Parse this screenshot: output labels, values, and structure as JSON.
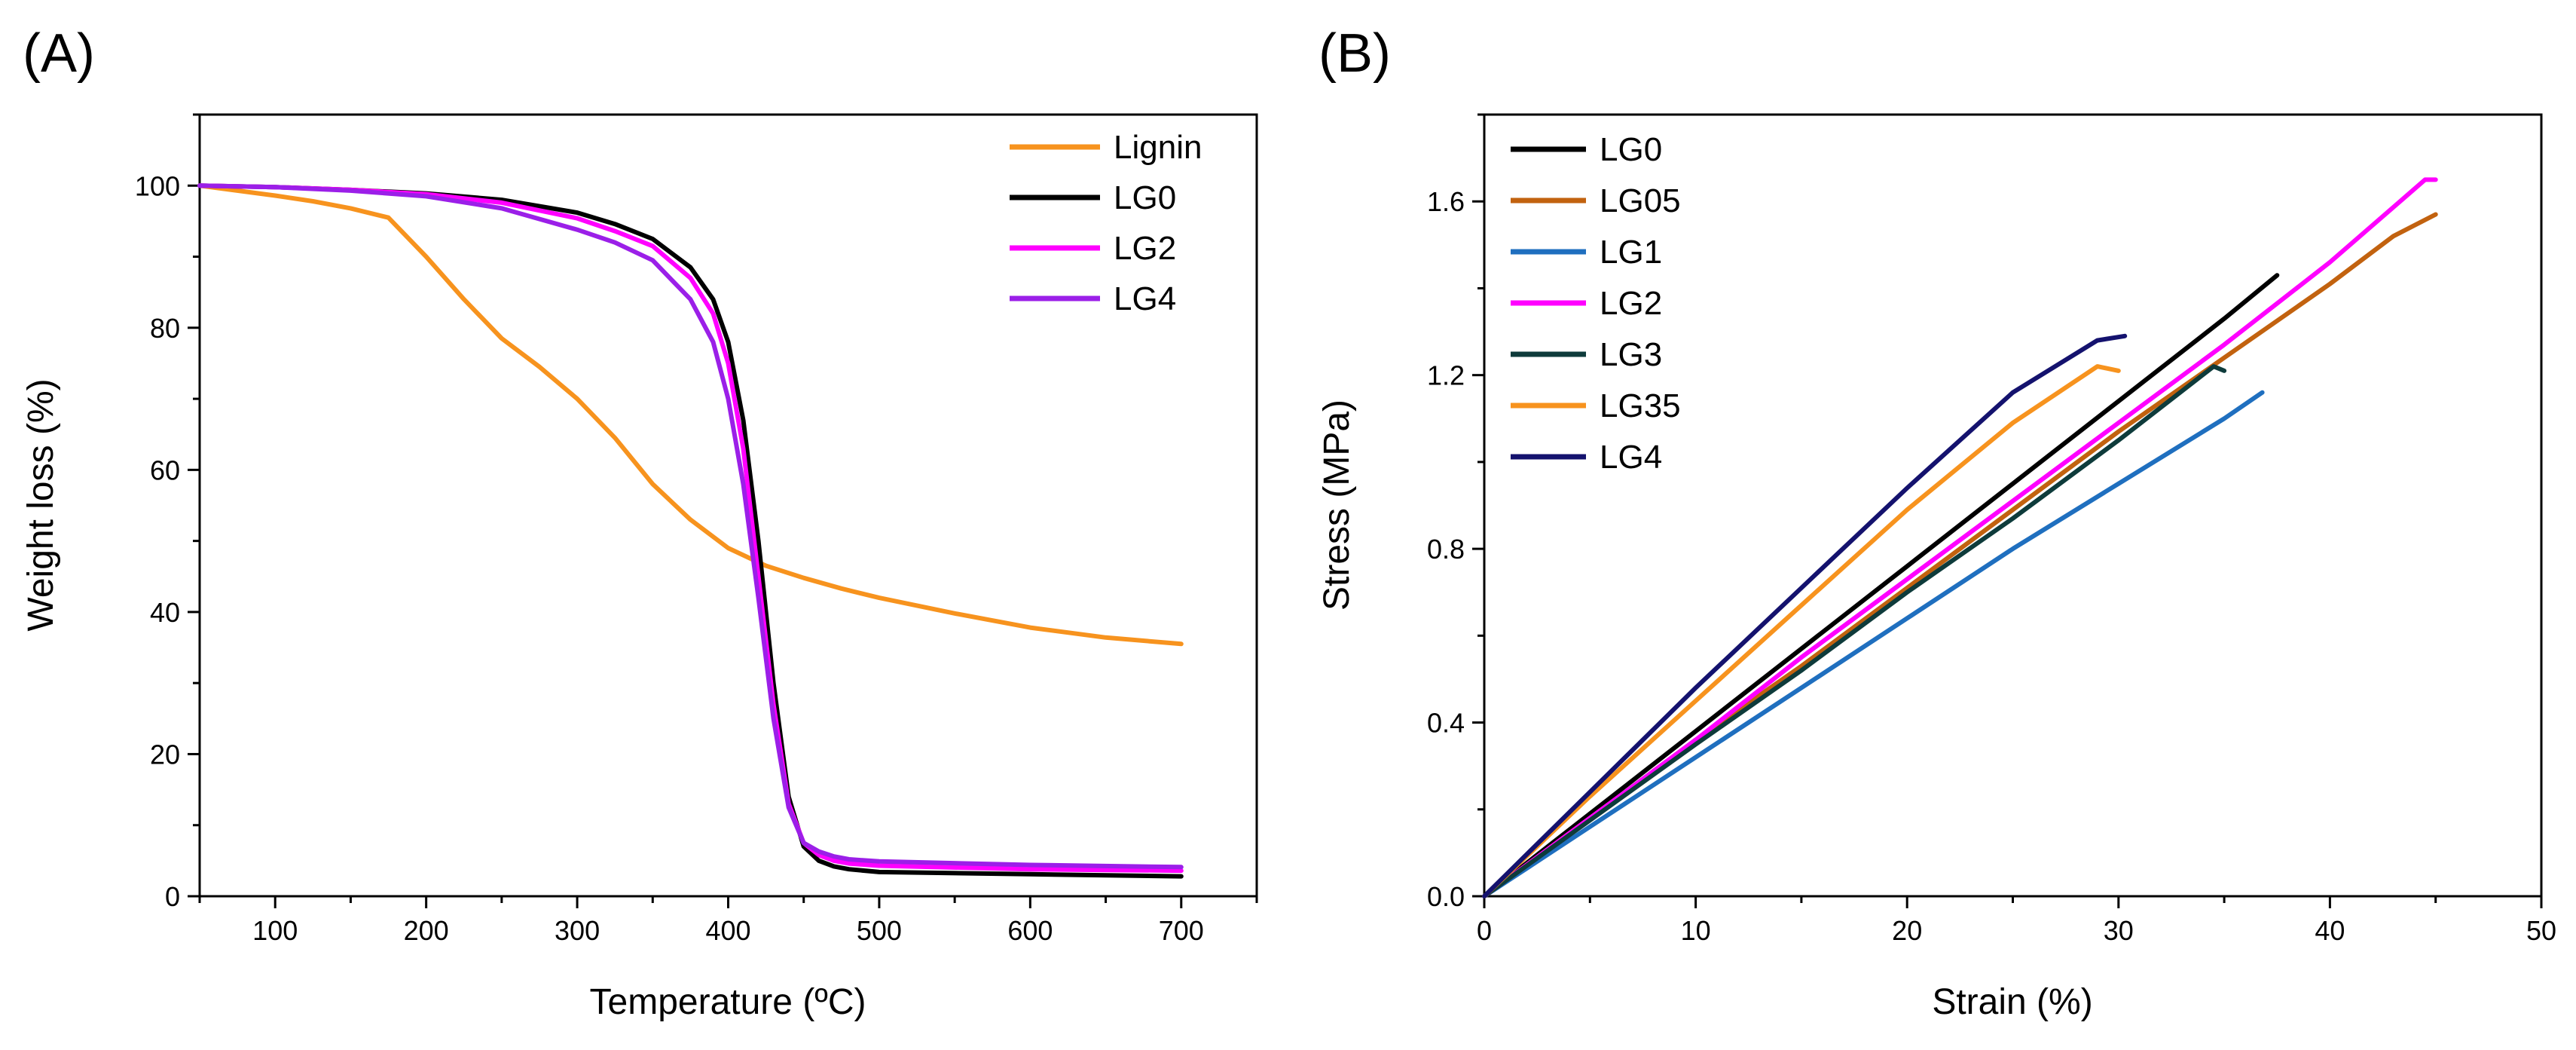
{
  "chart_data": [
    {
      "panel_label": "(A)",
      "type": "line",
      "title": "",
      "xlabel": "Temperature (ºC)",
      "ylabel": "Weight loss (%)",
      "xlim": [
        50,
        750
      ],
      "ylim": [
        0,
        110
      ],
      "xticks": [
        100,
        200,
        300,
        400,
        500,
        600,
        700
      ],
      "yticks": [
        0,
        20,
        40,
        60,
        80,
        100
      ],
      "grid": false,
      "legend_position": "top-right",
      "series": [
        {
          "name": "Lignin",
          "color": "#F7931E",
          "x": [
            50,
            75,
            100,
            125,
            150,
            175,
            200,
            225,
            250,
            275,
            300,
            325,
            350,
            375,
            400,
            425,
            450,
            475,
            500,
            550,
            600,
            650,
            700
          ],
          "y": [
            100,
            99.3,
            98.6,
            97.8,
            96.8,
            95.5,
            90,
            84,
            78.5,
            74.5,
            70,
            64.5,
            58,
            53,
            49,
            46.5,
            44.8,
            43.3,
            42,
            39.8,
            37.8,
            36.4,
            35.5
          ]
        },
        {
          "name": "LG0",
          "color": "#000000",
          "x": [
            50,
            100,
            150,
            200,
            250,
            300,
            325,
            350,
            375,
            390,
            400,
            410,
            420,
            430,
            440,
            450,
            460,
            470,
            480,
            500,
            600,
            700
          ],
          "y": [
            100,
            99.8,
            99.4,
            98.9,
            98,
            96.2,
            94.6,
            92.5,
            88.5,
            84,
            78,
            67,
            50,
            30,
            14,
            7,
            5,
            4.2,
            3.8,
            3.4,
            3.1,
            2.8
          ]
        },
        {
          "name": "LG2",
          "color": "#FF00FF",
          "x": [
            50,
            100,
            150,
            200,
            250,
            300,
            325,
            350,
            375,
            390,
            400,
            410,
            420,
            430,
            440,
            450,
            460,
            470,
            480,
            500,
            600,
            700
          ],
          "y": [
            100,
            99.8,
            99.4,
            98.8,
            97.6,
            95.4,
            93.6,
            91.5,
            87,
            82,
            75,
            63,
            45,
            27,
            13,
            7.5,
            5.8,
            5,
            4.6,
            4.3,
            3.8,
            3.6
          ]
        },
        {
          "name": "LG4",
          "color": "#9B1FE8",
          "x": [
            50,
            100,
            150,
            200,
            250,
            300,
            325,
            350,
            375,
            390,
            400,
            410,
            420,
            430,
            440,
            450,
            460,
            470,
            480,
            500,
            600,
            700
          ],
          "y": [
            100,
            99.8,
            99.3,
            98.5,
            96.8,
            93.8,
            92,
            89.5,
            84,
            78,
            70,
            58,
            42,
            25,
            12.5,
            7.5,
            6.3,
            5.6,
            5.2,
            4.9,
            4.4,
            4.1
          ]
        }
      ]
    },
    {
      "panel_label": "(B)",
      "type": "line",
      "title": "",
      "xlabel": "Strain (%)",
      "ylabel": "Stress (MPa)",
      "xlim": [
        0,
        50
      ],
      "ylim": [
        0,
        1.8
      ],
      "xticks": [
        0,
        10,
        20,
        30,
        40,
        50
      ],
      "yticks": [
        0.0,
        0.4,
        0.8,
        1.2,
        1.6
      ],
      "ytick_labels": [
        "0.0",
        "0.4",
        "0.8",
        "1.2",
        "1.6"
      ],
      "grid": false,
      "legend_position": "top-left",
      "series": [
        {
          "name": "LG0",
          "color": "#000000",
          "x": [
            0,
            5,
            10,
            15,
            20,
            25,
            30,
            35,
            37.5
          ],
          "y": [
            0,
            0.19,
            0.38,
            0.57,
            0.76,
            0.95,
            1.14,
            1.33,
            1.43
          ]
        },
        {
          "name": "LG05",
          "color": "#C2620F",
          "x": [
            0,
            5,
            10,
            15,
            20,
            25,
            30,
            35,
            40,
            43,
            45
          ],
          "y": [
            0,
            0.18,
            0.36,
            0.53,
            0.71,
            0.89,
            1.07,
            1.24,
            1.41,
            1.52,
            1.57
          ]
        },
        {
          "name": "LG1",
          "color": "#1F6FBF",
          "x": [
            0,
            5,
            10,
            15,
            20,
            25,
            30,
            35,
            36.8
          ],
          "y": [
            0,
            0.16,
            0.32,
            0.48,
            0.64,
            0.8,
            0.95,
            1.1,
            1.16
          ]
        },
        {
          "name": "LG2",
          "color": "#FF00FF",
          "x": [
            0,
            5,
            10,
            15,
            20,
            25,
            30,
            35,
            40,
            44.5,
            45
          ],
          "y": [
            0,
            0.18,
            0.36,
            0.55,
            0.73,
            0.91,
            1.09,
            1.27,
            1.46,
            1.65,
            1.65
          ]
        },
        {
          "name": "LG3",
          "color": "#0E3B3B",
          "x": [
            0,
            5,
            10,
            15,
            20,
            25,
            30,
            34.5,
            35
          ],
          "y": [
            0,
            0.175,
            0.35,
            0.52,
            0.7,
            0.87,
            1.05,
            1.22,
            1.21
          ]
        },
        {
          "name": "LG35",
          "color": "#F7931E",
          "x": [
            0,
            5,
            10,
            15,
            20,
            25,
            29,
            30
          ],
          "y": [
            0,
            0.23,
            0.45,
            0.67,
            0.89,
            1.09,
            1.22,
            1.21
          ]
        },
        {
          "name": "LG4",
          "color": "#14126E",
          "x": [
            0,
            5,
            10,
            15,
            20,
            25,
            29,
            30.3
          ],
          "y": [
            0,
            0.24,
            0.48,
            0.71,
            0.94,
            1.16,
            1.28,
            1.29
          ]
        }
      ]
    }
  ]
}
